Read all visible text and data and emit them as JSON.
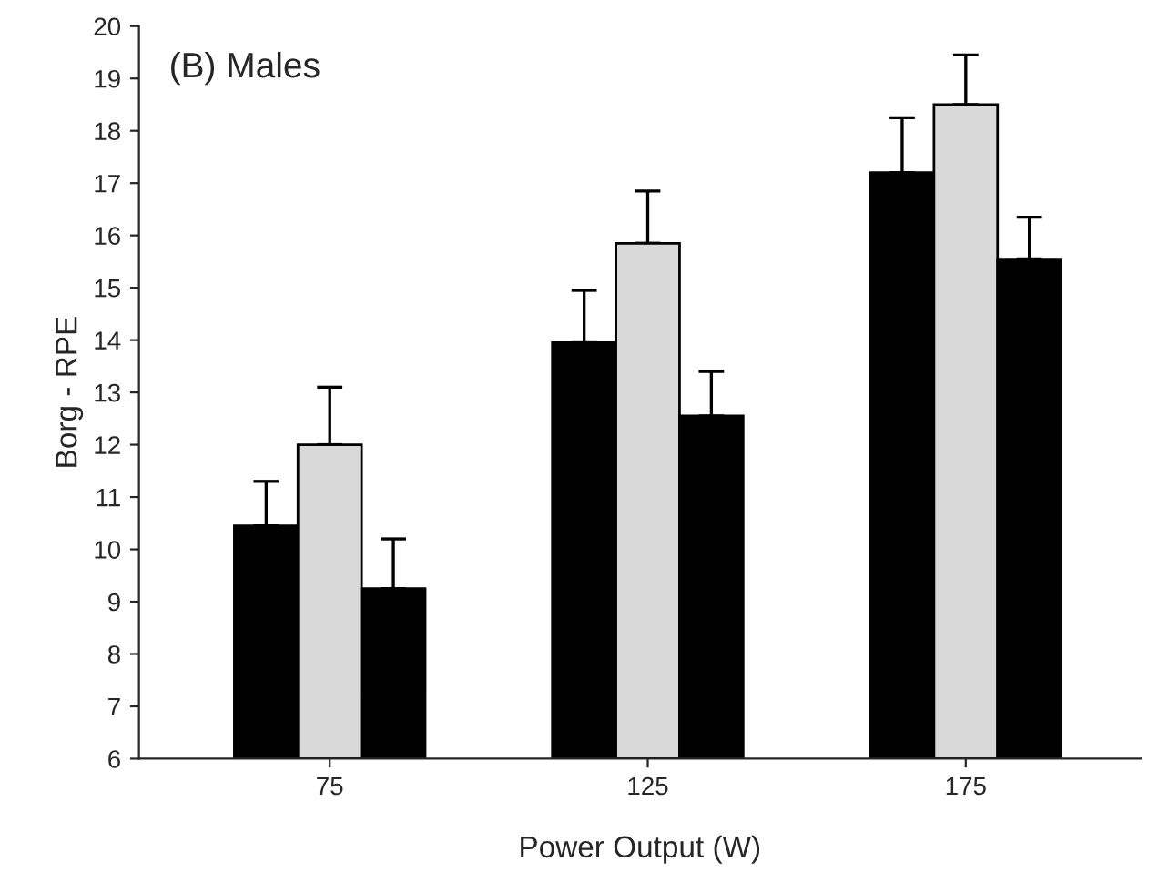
{
  "chart_data": {
    "type": "bar",
    "annotations": [
      "(B) Males"
    ],
    "xlabel": "Power Output (W)",
    "ylabel": "Borg - RPE",
    "categories": [
      "75",
      "125",
      "175"
    ],
    "series": [
      {
        "color": "#000000",
        "values": [
          10.45,
          13.95,
          17.2
        ],
        "errors": [
          [
            10.45,
            11.3
          ],
          [
            13.95,
            14.95
          ],
          [
            17.2,
            18.25
          ]
        ]
      },
      {
        "color": "#d9d9d9",
        "values": [
          12.0,
          15.85,
          18.5
        ],
        "errors": [
          [
            12.0,
            13.1
          ],
          [
            15.85,
            16.85
          ],
          [
            18.5,
            19.45
          ]
        ]
      },
      {
        "color": "#000000",
        "values": [
          9.25,
          12.55,
          15.55
        ],
        "errors": [
          [
            9.25,
            10.2
          ],
          [
            12.55,
            13.4
          ],
          [
            15.55,
            16.35
          ]
        ]
      }
    ],
    "ylim": [
      6,
      20
    ],
    "yticks": [
      6,
      7,
      8,
      9,
      10,
      11,
      12,
      13,
      14,
      15,
      16,
      17,
      18,
      19,
      20
    ],
    "grid": false,
    "legend": false
  }
}
